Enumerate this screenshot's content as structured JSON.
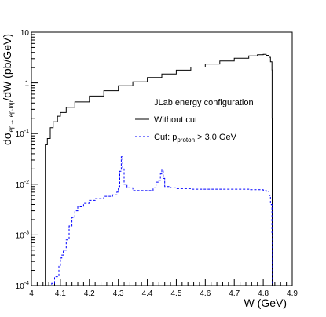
{
  "chart_data": {
    "type": "line",
    "x_axis": {
      "range": [
        4.0,
        4.9
      ],
      "ticks": [
        "4",
        "4.1",
        "4.2",
        "4.3",
        "4.4",
        "4.5",
        "4.6",
        "4.7",
        "4.8",
        "4.9"
      ],
      "label": "W (GeV)"
    },
    "y_axis": {
      "scale": "log",
      "range": [
        0.0001,
        10
      ],
      "ticks": [
        {
          "base": "10",
          "exp": "-4",
          "value": 0.0001
        },
        {
          "base": "10",
          "exp": "-3",
          "value": 0.001
        },
        {
          "base": "10",
          "exp": "-2",
          "value": 0.01
        },
        {
          "base": "10",
          "exp": "-1",
          "value": 0.1
        },
        {
          "base": "1",
          "exp": "",
          "value": 1
        },
        {
          "base": "10",
          "exp": "",
          "value": 10
        }
      ],
      "label": {
        "prefix": "dσ",
        "subscript": "ep→ epJ/ψ",
        "suffix": "/dW (pb/GeV)"
      }
    },
    "legend": {
      "header": "JLab energy configuration",
      "position": "center-right",
      "entries": [
        {
          "label": "Without cut",
          "style": "solid",
          "color": "#000000"
        },
        {
          "label_main": "Cut: p",
          "label_sub": "proton",
          "label_tail": " > 3.0 GeV",
          "style": "dashed",
          "color": "#0000ff"
        }
      ]
    },
    "series": [
      {
        "name": "Without cut",
        "color": "#000000",
        "style": "solid",
        "points": [
          [
            4.047,
            0.0001
          ],
          [
            4.048,
            0.06
          ],
          [
            4.055,
            0.08
          ],
          [
            4.065,
            0.13
          ],
          [
            4.075,
            0.17
          ],
          [
            4.09,
            0.22
          ],
          [
            4.1,
            0.26
          ],
          [
            4.12,
            0.33
          ],
          [
            4.15,
            0.42
          ],
          [
            4.2,
            0.55
          ],
          [
            4.25,
            0.7
          ],
          [
            4.3,
            0.88
          ],
          [
            4.35,
            1.05
          ],
          [
            4.4,
            1.28
          ],
          [
            4.45,
            1.5
          ],
          [
            4.5,
            1.78
          ],
          [
            4.55,
            2.05
          ],
          [
            4.6,
            2.35
          ],
          [
            4.65,
            2.7
          ],
          [
            4.7,
            3.05
          ],
          [
            4.75,
            3.4
          ],
          [
            4.78,
            3.6
          ],
          [
            4.8,
            3.65
          ],
          [
            4.81,
            3.5
          ],
          [
            4.82,
            3.2
          ],
          [
            4.825,
            2.6
          ],
          [
            4.83,
            1.8
          ],
          [
            4.8305,
            0.2
          ],
          [
            4.831,
            0.0001
          ]
        ]
      },
      {
        "name": "Cut: p_proton > 3.0 GeV",
        "color": "#0000ff",
        "style": "dashed",
        "points": [
          [
            4.06,
            0.0001
          ],
          [
            4.07,
            0.00011
          ],
          [
            4.08,
            0.00015
          ],
          [
            4.09,
            0.00015
          ],
          [
            4.095,
            0.00025
          ],
          [
            4.1,
            0.00035
          ],
          [
            4.105,
            0.0004
          ],
          [
            4.11,
            0.0005
          ],
          [
            4.12,
            0.0008
          ],
          [
            4.13,
            0.0015
          ],
          [
            4.14,
            0.0022
          ],
          [
            4.15,
            0.003
          ],
          [
            4.16,
            0.0036
          ],
          [
            4.18,
            0.0042
          ],
          [
            4.2,
            0.0048
          ],
          [
            4.22,
            0.0052
          ],
          [
            4.25,
            0.0058
          ],
          [
            4.28,
            0.0062
          ],
          [
            4.295,
            0.007
          ],
          [
            4.3,
            0.009
          ],
          [
            4.305,
            0.018
          ],
          [
            4.31,
            0.035
          ],
          [
            4.315,
            0.02
          ],
          [
            4.32,
            0.01
          ],
          [
            4.33,
            0.0085
          ],
          [
            4.35,
            0.0075
          ],
          [
            4.38,
            0.0075
          ],
          [
            4.4,
            0.0075
          ],
          [
            4.42,
            0.0085
          ],
          [
            4.43,
            0.011
          ],
          [
            4.44,
            0.012
          ],
          [
            4.445,
            0.016
          ],
          [
            4.45,
            0.019
          ],
          [
            4.455,
            0.013
          ],
          [
            4.46,
            0.009
          ],
          [
            4.48,
            0.0085
          ],
          [
            4.5,
            0.0082
          ],
          [
            4.55,
            0.008
          ],
          [
            4.6,
            0.008
          ],
          [
            4.65,
            0.008
          ],
          [
            4.7,
            0.008
          ],
          [
            4.75,
            0.0078
          ],
          [
            4.8,
            0.0076
          ],
          [
            4.81,
            0.0072
          ],
          [
            4.82,
            0.006
          ],
          [
            4.825,
            0.004
          ],
          [
            4.83,
            0.001
          ],
          [
            4.832,
            0.0001
          ]
        ]
      }
    ]
  }
}
